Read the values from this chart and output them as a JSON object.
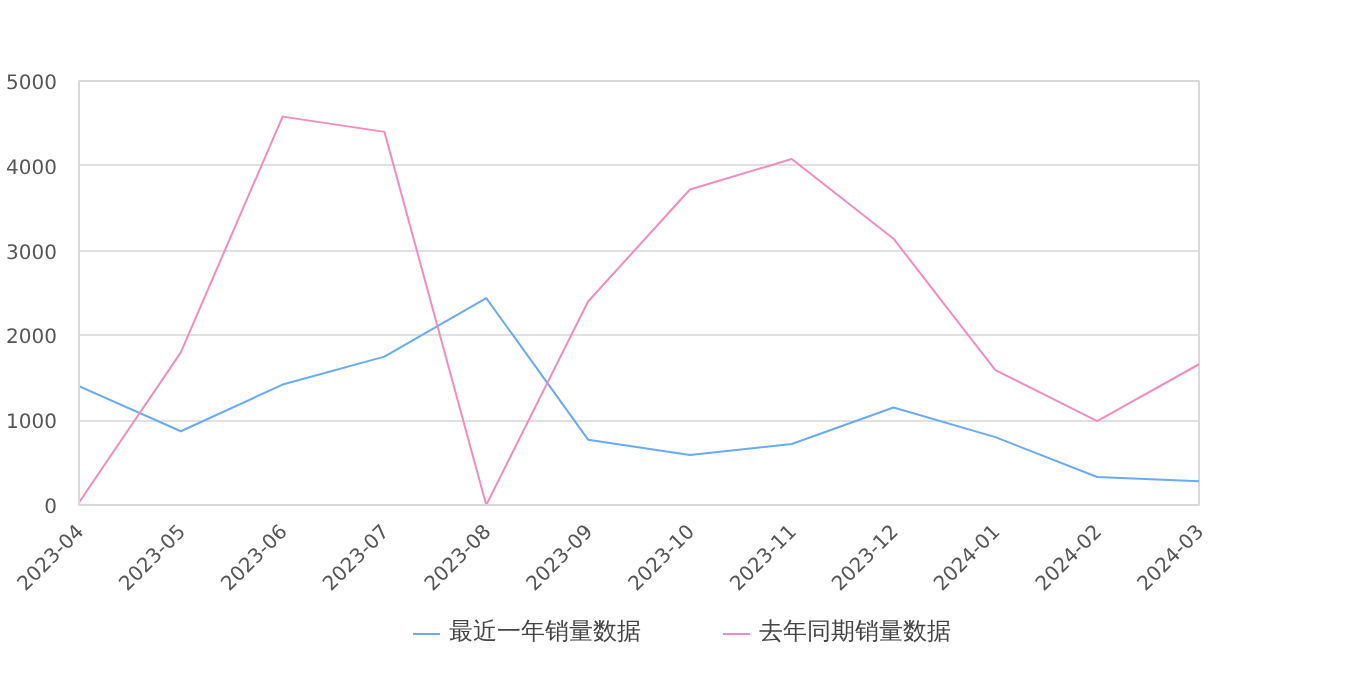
{
  "chart_data": {
    "type": "line",
    "categories": [
      "2023-04",
      "2023-05",
      "2023-06",
      "2023-07",
      "2023-08",
      "2023-09",
      "2023-10",
      "2023-11",
      "2023-12",
      "2024-01",
      "2024-02",
      "2024-03"
    ],
    "series": [
      {
        "name": "最近一年销量数据",
        "color": "#6aaaf2",
        "values": [
          1400,
          870,
          1420,
          1750,
          2440,
          770,
          590,
          720,
          1150,
          800,
          330,
          280
        ]
      },
      {
        "name": "去年同期销量数据",
        "color": "#f28cc0",
        "values": [
          30,
          1800,
          4580,
          4400,
          0,
          2400,
          3720,
          4080,
          3140,
          1590,
          990,
          1660
        ]
      }
    ],
    "ylim": [
      0,
      5000
    ],
    "yticks": [
      0,
      1000,
      2000,
      3000,
      4000,
      5000
    ],
    "grid": "y",
    "legend": "bottom",
    "marker": "none",
    "line_style": "solid"
  }
}
